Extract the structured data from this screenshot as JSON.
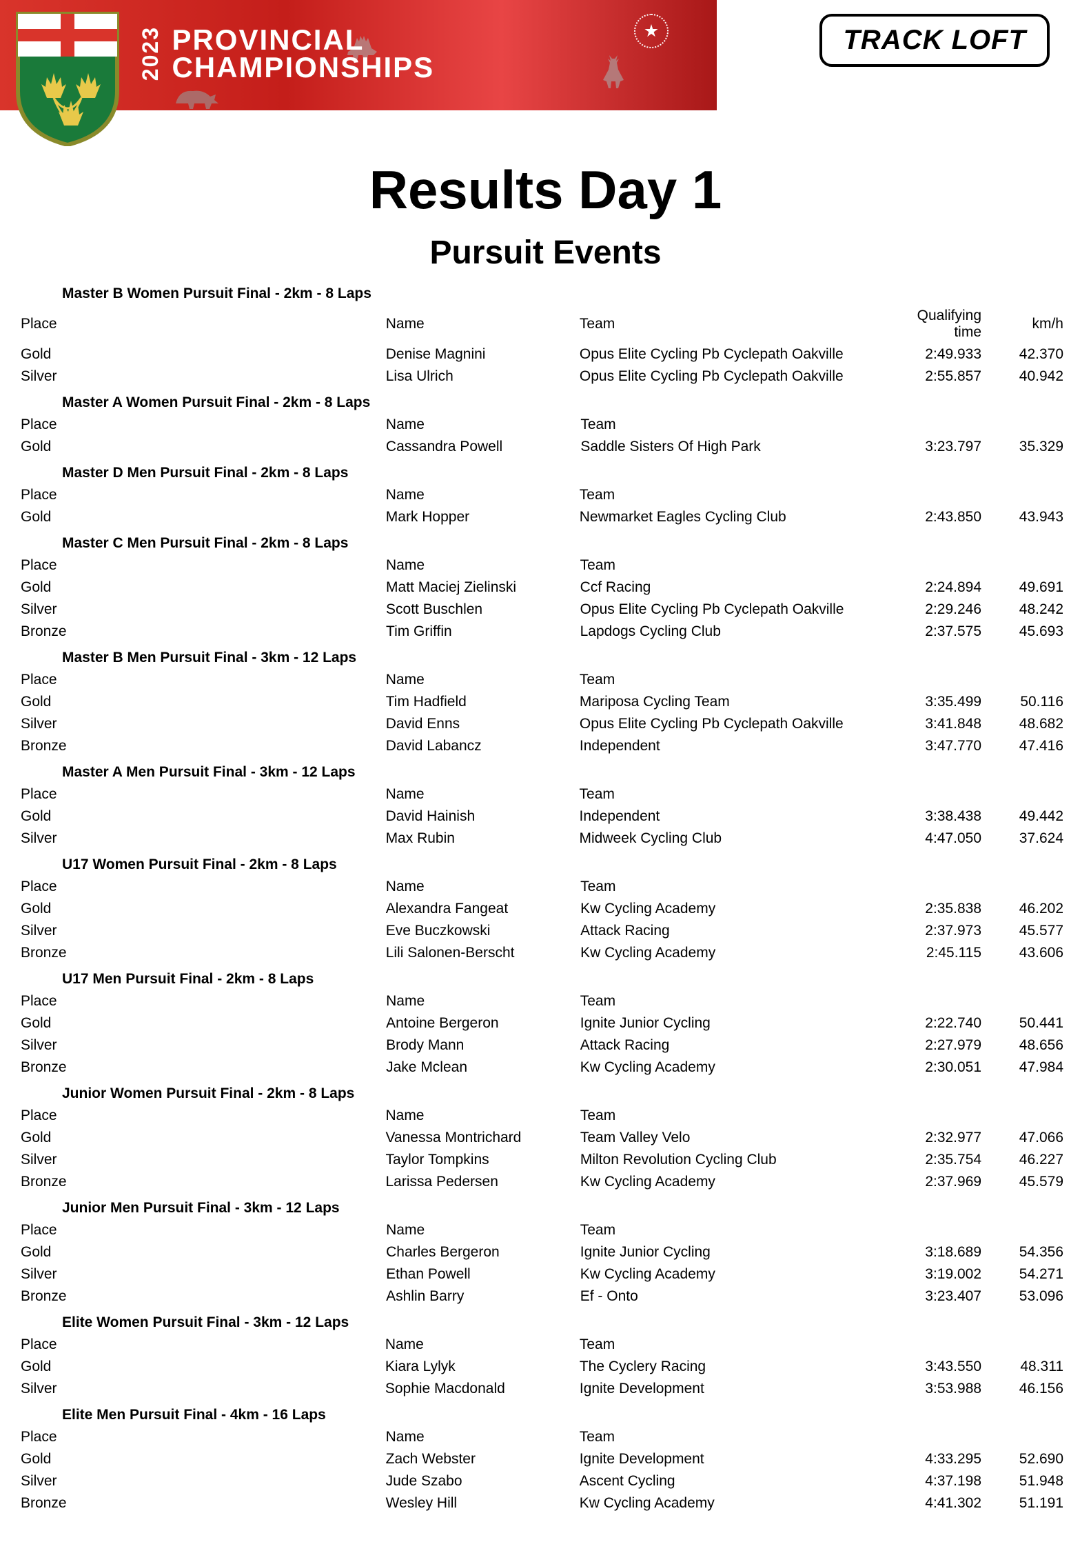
{
  "banner": {
    "year": "2023",
    "line1": "PROVINCIAL",
    "line2": "CHAMPIONSHIPS",
    "sponsor": "TRACK LOFT"
  },
  "title": "Results Day 1",
  "subtitle": "Pursuit Events",
  "columns": {
    "place": "Place",
    "name": "Name",
    "team": "Team",
    "qt": "Qualifying time",
    "kmh": "km/h"
  },
  "events": [
    {
      "title": "Master B Women Pursuit Final - 2km - 8 Laps",
      "show_qt_header": true,
      "rows": [
        {
          "place": "Gold",
          "name": "Denise Magnini",
          "team": "Opus Elite Cycling Pb Cyclepath Oakville",
          "qt": "2:49.933",
          "kmh": "42.370"
        },
        {
          "place": "Silver",
          "name": "Lisa Ulrich",
          "team": "Opus Elite Cycling Pb Cyclepath Oakville",
          "qt": "2:55.857",
          "kmh": "40.942"
        }
      ]
    },
    {
      "title": "Master A Women Pursuit Final - 2km - 8 Laps",
      "show_qt_header": false,
      "rows": [
        {
          "place": "Gold",
          "name": "Cassandra Powell",
          "team": "Saddle Sisters Of High Park",
          "qt": "3:23.797",
          "kmh": "35.329"
        }
      ]
    },
    {
      "title": "Master D Men Pursuit Final - 2km - 8 Laps",
      "show_qt_header": false,
      "rows": [
        {
          "place": "Gold",
          "name": "Mark Hopper",
          "team": "Newmarket Eagles Cycling Club",
          "qt": "2:43.850",
          "kmh": "43.943"
        }
      ]
    },
    {
      "title": "Master C Men Pursuit Final - 2km - 8 Laps",
      "show_qt_header": false,
      "rows": [
        {
          "place": "Gold",
          "name": "Matt Maciej Zielinski",
          "team": "Ccf Racing",
          "qt": "2:24.894",
          "kmh": "49.691"
        },
        {
          "place": "Silver",
          "name": "Scott Buschlen",
          "team": "Opus Elite Cycling Pb Cyclepath Oakville",
          "qt": "2:29.246",
          "kmh": "48.242"
        },
        {
          "place": "Bronze",
          "name": "Tim Griffin",
          "team": "Lapdogs Cycling Club",
          "qt": "2:37.575",
          "kmh": "45.693"
        }
      ]
    },
    {
      "title": "Master B Men Pursuit Final - 3km - 12 Laps",
      "show_qt_header": false,
      "rows": [
        {
          "place": "Gold",
          "name": "Tim Hadfield",
          "team": "Mariposa Cycling Team",
          "qt": "3:35.499",
          "kmh": "50.116"
        },
        {
          "place": "Silver",
          "name": "David Enns",
          "team": "Opus Elite Cycling Pb Cyclepath Oakville",
          "qt": "3:41.848",
          "kmh": "48.682"
        },
        {
          "place": "Bronze",
          "name": "David Labancz",
          "team": "Independent",
          "qt": "3:47.770",
          "kmh": "47.416"
        }
      ]
    },
    {
      "title": "Master A Men Pursuit Final - 3km - 12 Laps",
      "show_qt_header": false,
      "rows": [
        {
          "place": "Gold",
          "name": "David Hainish",
          "team": "Independent",
          "qt": "3:38.438",
          "kmh": "49.442"
        },
        {
          "place": "Silver",
          "name": "Max Rubin",
          "team": "Midweek Cycling Club",
          "qt": "4:47.050",
          "kmh": "37.624"
        }
      ]
    },
    {
      "title": "U17 Women Pursuit Final - 2km - 8 Laps",
      "show_qt_header": false,
      "rows": [
        {
          "place": "Gold",
          "name": "Alexandra Fangeat",
          "team": "Kw Cycling Academy",
          "qt": "2:35.838",
          "kmh": "46.202"
        },
        {
          "place": "Silver",
          "name": "Eve Buczkowski",
          "team": "Attack Racing",
          "qt": "2:37.973",
          "kmh": "45.577"
        },
        {
          "place": "Bronze",
          "name": "Lili Salonen-Berscht",
          "team": "Kw Cycling Academy",
          "qt": "2:45.115",
          "kmh": "43.606"
        }
      ]
    },
    {
      "title": "U17 Men Pursuit Final - 2km - 8 Laps",
      "show_qt_header": false,
      "rows": [
        {
          "place": "Gold",
          "name": "Antoine Bergeron",
          "team": "Ignite Junior Cycling",
          "qt": "2:22.740",
          "kmh": "50.441"
        },
        {
          "place": "Silver",
          "name": "Brody Mann",
          "team": "Attack Racing",
          "qt": "2:27.979",
          "kmh": "48.656"
        },
        {
          "place": "Bronze",
          "name": "Jake Mclean",
          "team": "Kw Cycling Academy",
          "qt": "2:30.051",
          "kmh": "47.984"
        }
      ]
    },
    {
      "title": "Junior Women Pursuit Final - 2km - 8 Laps",
      "show_qt_header": false,
      "rows": [
        {
          "place": "Gold",
          "name": "Vanessa Montrichard",
          "team": "Team Valley Velo",
          "qt": "2:32.977",
          "kmh": "47.066"
        },
        {
          "place": "Silver",
          "name": "Taylor Tompkins",
          "team": "Milton Revolution Cycling Club",
          "qt": "2:35.754",
          "kmh": "46.227"
        },
        {
          "place": "Bronze",
          "name": "Larissa Pedersen",
          "team": "Kw Cycling Academy",
          "qt": "2:37.969",
          "kmh": "45.579"
        }
      ]
    },
    {
      "title": "Junior Men Pursuit Final - 3km - 12 Laps",
      "show_qt_header": false,
      "rows": [
        {
          "place": "Gold",
          "name": "Charles Bergeron",
          "team": "Ignite Junior Cycling",
          "qt": "3:18.689",
          "kmh": "54.356"
        },
        {
          "place": "Silver",
          "name": "Ethan Powell",
          "team": "Kw Cycling Academy",
          "qt": "3:19.002",
          "kmh": "54.271"
        },
        {
          "place": "Bronze",
          "name": "Ashlin Barry",
          "team": "Ef - Onto",
          "qt": "3:23.407",
          "kmh": "53.096"
        }
      ]
    },
    {
      "title": "Elite Women Pursuit Final - 3km - 12 Laps",
      "show_qt_header": false,
      "rows": [
        {
          "place": "Gold",
          "name": "Kiara Lylyk",
          "team": "The Cyclery Racing",
          "qt": "3:43.550",
          "kmh": "48.311"
        },
        {
          "place": "Silver",
          "name": "Sophie Macdonald",
          "team": "Ignite Development",
          "qt": "3:53.988",
          "kmh": "46.156"
        }
      ]
    },
    {
      "title": "Elite Men Pursuit Final - 4km - 16 Laps",
      "show_qt_header": false,
      "rows": [
        {
          "place": "Gold",
          "name": "Zach Webster",
          "team": "Ignite Development",
          "qt": "4:33.295",
          "kmh": "52.690"
        },
        {
          "place": "Silver",
          "name": "Jude Szabo",
          "team": "Ascent Cycling",
          "qt": "4:37.198",
          "kmh": "51.948"
        },
        {
          "place": "Bronze",
          "name": "Wesley Hill",
          "team": "Kw Cycling Academy",
          "qt": "4:41.302",
          "kmh": "51.191"
        }
      ]
    }
  ]
}
